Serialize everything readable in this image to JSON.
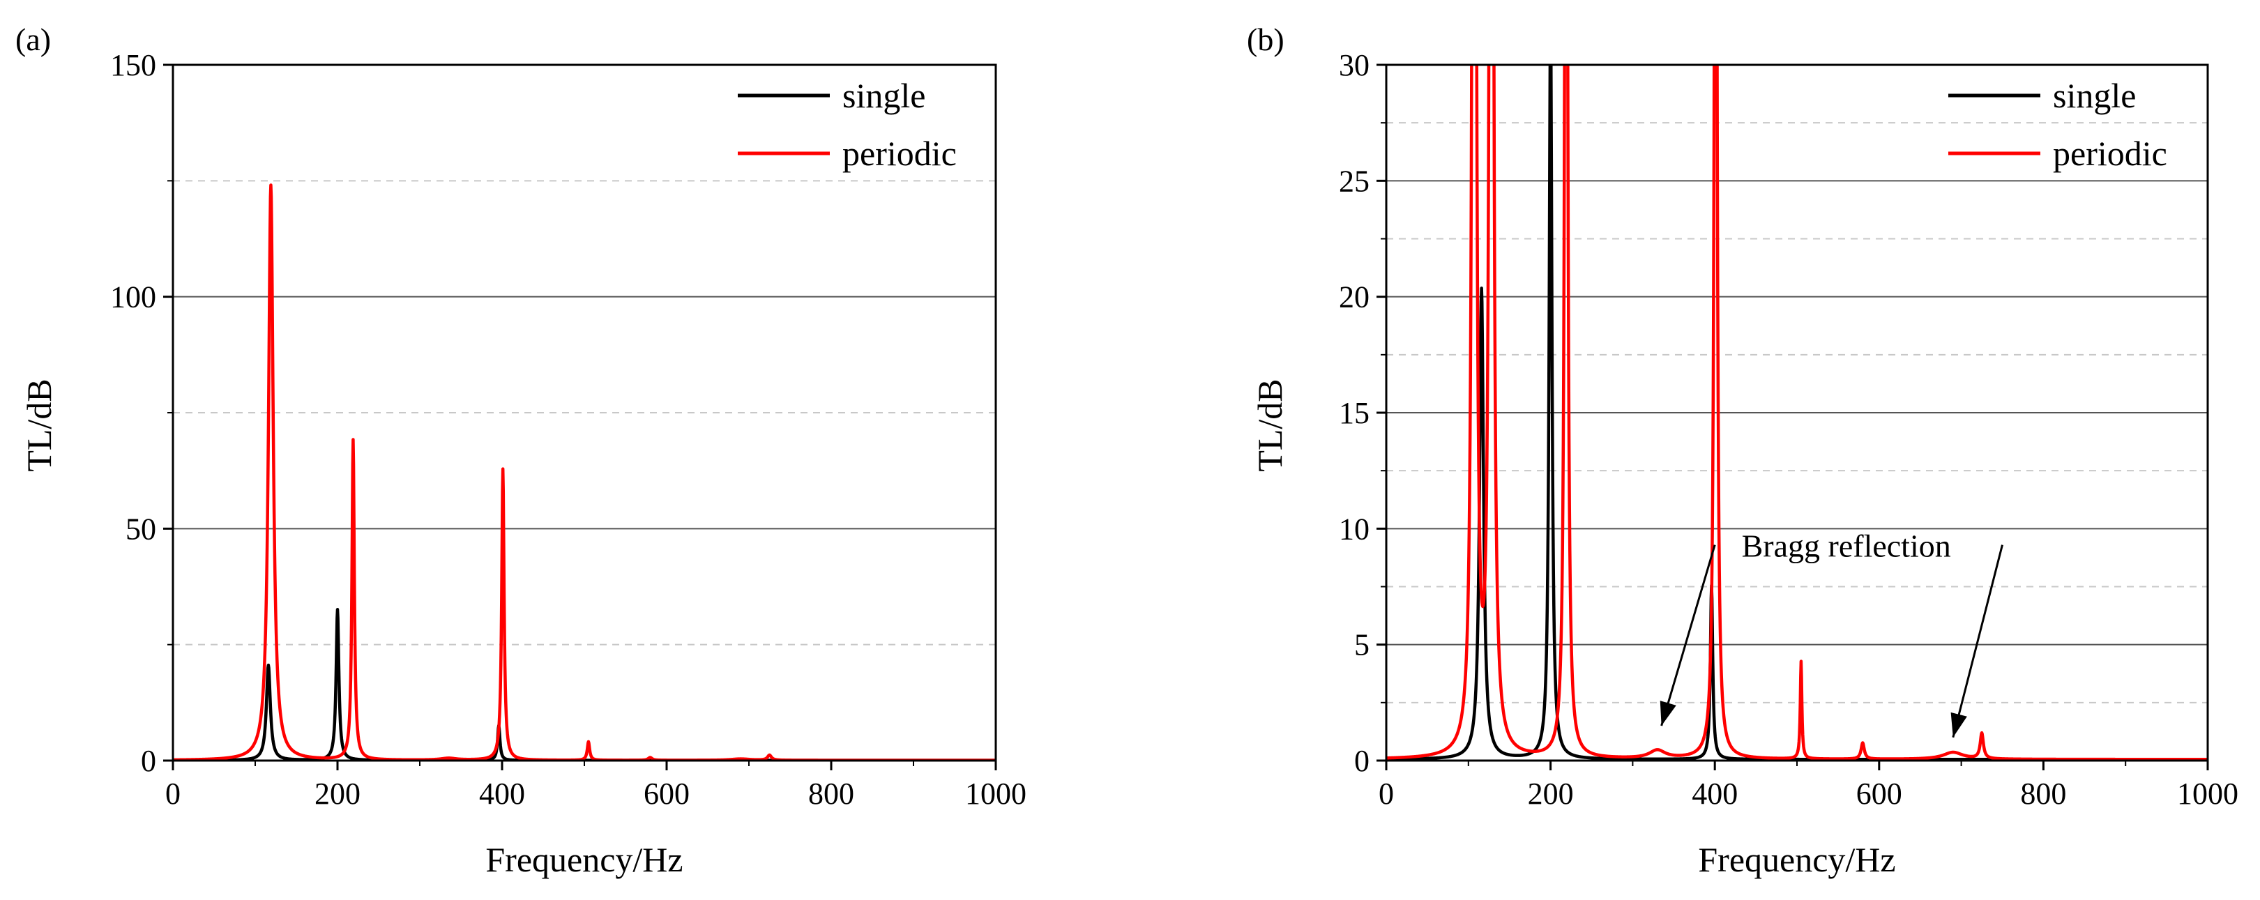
{
  "chart_data": [
    {
      "panel_label": "(a)",
      "type": "line",
      "xlabel": "Frequency/Hz",
      "ylabel": "TL/dB",
      "xlim": [
        0,
        1000
      ],
      "ylim": [
        0,
        150
      ],
      "xticks": [
        0,
        200,
        400,
        600,
        800,
        1000
      ],
      "yticks": [
        0,
        50,
        100,
        150
      ],
      "grid": {
        "major": [
          50,
          100
        ],
        "minor": [
          25,
          75,
          125
        ]
      },
      "legend": {
        "position": "top-right",
        "entries": [
          "single",
          "periodic"
        ]
      },
      "series": [
        {
          "name": "single",
          "color": "#000000",
          "peaks": [
            {
              "f": 116,
              "h": 20.5,
              "w": 5
            },
            {
              "f": 200,
              "h": 32.5,
              "w": 3.5
            },
            {
              "f": 396,
              "h": 7.5,
              "w": 3
            }
          ]
        },
        {
          "name": "periodic",
          "color": "#ff0000",
          "peaks": [
            {
              "f": 119,
              "h": 124,
              "w": 6
            },
            {
              "f": 219,
              "h": 69,
              "w": 3
            },
            {
              "f": 401,
              "h": 62.8,
              "w": 3
            },
            {
              "f": 505,
              "h": 4,
              "w": 3
            },
            {
              "f": 580,
              "h": 0.6,
              "w": 5
            },
            {
              "f": 725,
              "h": 1.1,
              "w": 5
            },
            {
              "f": 335,
              "h": 0.4,
              "w": 20
            },
            {
              "f": 690,
              "h": 0.3,
              "w": 25
            }
          ]
        }
      ]
    },
    {
      "panel_label": "(b)",
      "type": "line",
      "xlabel": "Frequency/Hz",
      "ylabel": "TL/dB",
      "xlim": [
        0,
        1000
      ],
      "ylim": [
        0,
        30
      ],
      "xticks": [
        0,
        200,
        400,
        600,
        800,
        1000
      ],
      "yticks": [
        0,
        5,
        10,
        15,
        20,
        25,
        30
      ],
      "grid": {
        "major": [
          5,
          10,
          15,
          20,
          25
        ],
        "minor": [
          2.5,
          7.5,
          12.5,
          17.5,
          22.5,
          27.5
        ]
      },
      "legend": {
        "position": "top-right",
        "entries": [
          "single",
          "periodic"
        ]
      },
      "series": [
        {
          "name": "single",
          "color": "#000000",
          "peaks": [
            {
              "f": 116,
              "h": 20.3,
              "w": 5
            },
            {
              "f": 200,
              "h": 32.5,
              "w": 3.5
            },
            {
              "f": 396,
              "h": 7.5,
              "w": 3
            }
          ]
        },
        {
          "name": "periodic",
          "color": "#ff0000",
          "peaks": [
            {
              "f": 107,
              "h": 124,
              "w": 3
            },
            {
              "f": 128,
              "h": 124,
              "w": 3
            },
            {
              "f": 219,
              "h": 69,
              "w": 3
            },
            {
              "f": 401,
              "h": 62.8,
              "w": 3
            },
            {
              "f": 505,
              "h": 4.2,
              "w": 2
            },
            {
              "f": 580,
              "h": 0.7,
              "w": 4
            },
            {
              "f": 725,
              "h": 1.1,
              "w": 4
            },
            {
              "f": 330,
              "h": 0.35,
              "w": 20
            },
            {
              "f": 690,
              "h": 0.3,
              "w": 25
            }
          ]
        }
      ],
      "annotation": {
        "text": "Bragg reflection",
        "arrows_to": [
          {
            "x": 335,
            "y": 1.5
          },
          {
            "x": 690,
            "y": 1.0
          }
        ],
        "arrow_from": [
          {
            "x": 400,
            "y": 9.3
          },
          {
            "x": 750,
            "y": 9.3
          }
        ],
        "text_at": {
          "x": 560,
          "y": 8.8
        }
      }
    }
  ]
}
